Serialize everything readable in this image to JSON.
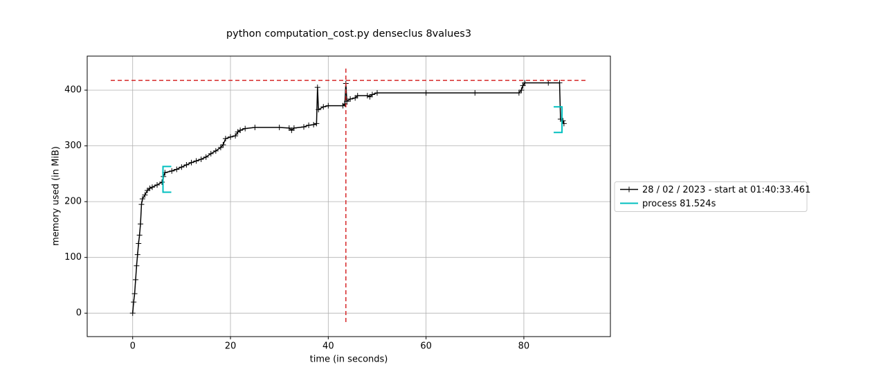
{
  "chart_data": {
    "type": "line",
    "title": "python computation_cost.py denseclus 8values3",
    "x_label": "time (in seconds)",
    "y_label": "memory used (in MiB)",
    "x": [
      0,
      0.2,
      0.4,
      0.6,
      0.8,
      1.0,
      1.2,
      1.4,
      1.6,
      1.8,
      2.0,
      2.5,
      3,
      3.5,
      4,
      5,
      6,
      6.3,
      6.6,
      8,
      9,
      10,
      11,
      12,
      13,
      14,
      15,
      16,
      17,
      18,
      18.5,
      19,
      20,
      21,
      21.5,
      22,
      23,
      25,
      30,
      32,
      32.5,
      33,
      35,
      36,
      37,
      37.6,
      37.8,
      38,
      39,
      40,
      43,
      43.4,
      43.6,
      43.8,
      44.5,
      45.5,
      46,
      48,
      48.5,
      49,
      50,
      60,
      70,
      79,
      79.5,
      79.8,
      80.2,
      85,
      87.3,
      87.5,
      88,
      88.2
    ],
    "series": [
      {
        "name": "28 / 02 / 2023 - start at 01:40:33.461",
        "color": "#000000",
        "values": [
          0,
          20,
          35,
          60,
          85,
          105,
          125,
          140,
          160,
          195,
          205,
          212,
          220,
          224,
          226,
          230,
          235,
          245,
          252,
          255,
          258,
          262,
          266,
          270,
          273,
          276,
          280,
          286,
          291,
          297,
          302,
          313,
          316,
          318,
          325,
          328,
          331,
          333,
          333,
          332,
          328,
          332,
          334,
          337,
          338,
          340,
          405,
          365,
          370,
          372,
          372,
          375,
          412,
          380,
          384,
          386,
          390,
          390,
          388,
          392,
          395,
          395,
          395,
          395,
          400,
          408,
          413,
          413,
          413,
          348,
          345,
          340
        ]
      }
    ],
    "process_brackets": {
      "name": "process 81.524s",
      "color": "#00bfbf",
      "x": [
        6.2,
        87.8
      ],
      "ymin": [
        217,
        324
      ],
      "ymax": [
        263,
        370
      ]
    },
    "max_usage": {
      "time": 43.6,
      "memory": 417.4,
      "color": "#d62728"
    },
    "xlim": [
      -9.3,
      97.7
    ],
    "ylim": [
      -42,
      461
    ],
    "xticks": [
      0,
      20,
      40,
      60,
      80
    ],
    "yticks": [
      0,
      100,
      200,
      300,
      400
    ],
    "grid": true,
    "legend_loc": "center right outside"
  }
}
